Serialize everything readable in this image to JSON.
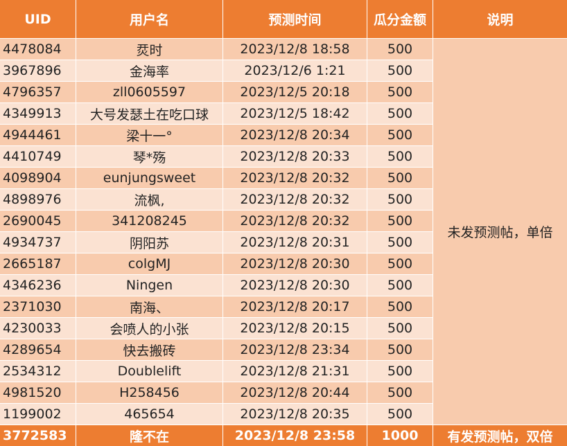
{
  "header": {
    "columns": [
      "UID",
      "用户名",
      "预测时间",
      "瓜分金额",
      "说明"
    ]
  },
  "table": {
    "rows": [
      [
        "4478084",
        "烎时",
        "2023/12/8 18:58",
        500
      ],
      [
        "3967896",
        "金海率",
        "2023/12/6 1:21",
        500
      ],
      [
        "4796357",
        "zll0605597",
        "2023/12/5 20:18",
        500
      ],
      [
        "4349913",
        "大号发瑟土在吃口球",
        "2023/12/5 18:42",
        500
      ],
      [
        "4944461",
        "梁十一°",
        "2023/12/8 20:34",
        500
      ],
      [
        "4410749",
        "琴*殇",
        "2023/12/8 20:33",
        500
      ],
      [
        "4098904",
        "eunjungsweet",
        "2023/12/8 20:32",
        500
      ],
      [
        "4898976",
        "流枫,",
        "2023/12/8 20:32",
        500
      ],
      [
        "2690045",
        "341208245",
        "2023/12/8 20:32",
        500
      ],
      [
        "4934737",
        "阴阳苏",
        "2023/12/8 20:31",
        500
      ],
      [
        "2665187",
        "colgMJ",
        "2023/12/8 20:30",
        500
      ],
      [
        "4346236",
        "Ningen",
        "2023/12/8 20:30",
        500
      ],
      [
        "2371030",
        "南海、",
        "2023/12/8 20:17",
        500
      ],
      [
        "4230033",
        "会喷人的小张",
        "2023/12/8 20:15",
        500
      ],
      [
        "4289654",
        "快去搬砖",
        "2023/12/8 23:34",
        500
      ],
      [
        "2534312",
        "Doublelift",
        "2023/12/8 21:31",
        500
      ],
      [
        "4981520",
        "H258456",
        "2023/12/8 20:44",
        500
      ],
      [
        "1199002",
        "465654",
        "2023/12/8 20:35",
        500
      ]
    ],
    "note": "未发预测帖，单倍",
    "footer": [
      "3772583",
      "隆不在",
      "2023/12/8 23:58",
      1000,
      "有发预测帖，双倍"
    ]
  }
}
